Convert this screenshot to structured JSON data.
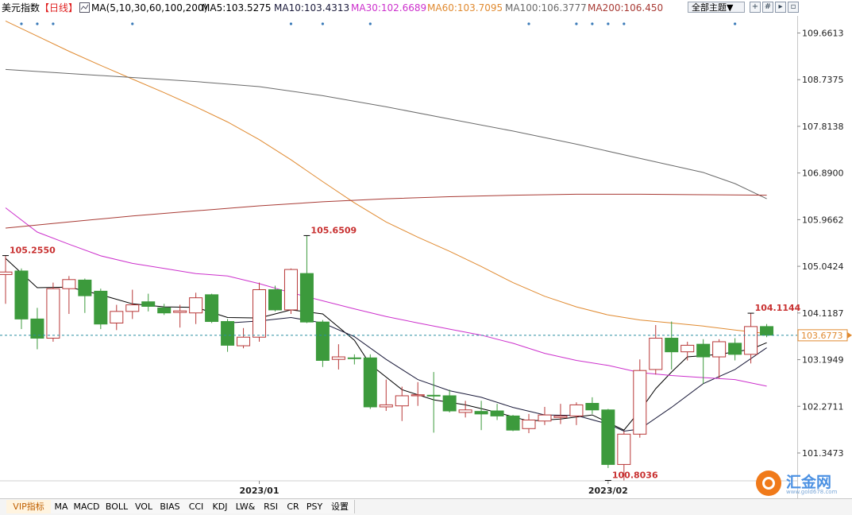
{
  "header": {
    "instrument": "美元指数",
    "period": "【日线】",
    "ma_params": "MA(5,10,30,60,100,200)",
    "ma5": "MA5:103.5275",
    "ma10": "MA10:103.4313",
    "ma30": "MA30:102.6689",
    "ma60": "MA60:103.7095",
    "ma100": "MA100:106.3777",
    "ma200": "MA200:106.450",
    "theme_button": "全部主题▼"
  },
  "colors": {
    "up": "#b83838",
    "down": "#3c9a3c",
    "ma5": "#000000",
    "ma10": "#1a1a3a",
    "ma30": "#cc30cc",
    "ma60": "#e08a30",
    "ma100": "#6a6a6a",
    "ma200": "#a83a34",
    "last_price_line": "#2a8fa0"
  },
  "tabs": [
    "VIP指标",
    "MA",
    "MACD",
    "BOLL",
    "VOL",
    "BIAS",
    "CCI",
    "KDJ",
    "LW&",
    "RSI",
    "CR",
    "PSY",
    "设置"
  ],
  "logo": {
    "name": "汇金网",
    "url": "www.gold678.com"
  },
  "chart_data": {
    "type": "candlestick",
    "title": "美元指数",
    "y_ticks": [
      109.6613,
      108.7375,
      107.8138,
      106.89,
      105.9662,
      105.0424,
      104.1187,
      103.1949,
      102.2711,
      101.3473
    ],
    "ylim": [
      100.45,
      110.0
    ],
    "x_labels": [
      {
        "label": "2023/01",
        "index": 16
      },
      {
        "label": "2023/02",
        "index": 38
      }
    ],
    "last_price": 103.6773,
    "annotations": [
      {
        "text": "105.2550",
        "index": 0,
        "value": 105.255
      },
      {
        "text": "105.6509",
        "index": 19,
        "value": 105.6509
      },
      {
        "text": "100.8036",
        "index": 38,
        "value": 100.8036
      },
      {
        "text": "104.1144",
        "index": 47,
        "value": 104.1144
      }
    ],
    "candles": [
      {
        "o": 104.88,
        "h": 105.255,
        "l": 104.3,
        "c": 104.93
      },
      {
        "o": 104.95,
        "h": 105.0,
        "l": 103.8,
        "c": 104.0
      },
      {
        "o": 104.0,
        "h": 104.22,
        "l": 103.4,
        "c": 103.62
      },
      {
        "o": 103.62,
        "h": 104.72,
        "l": 103.55,
        "c": 104.6
      },
      {
        "o": 104.6,
        "h": 104.85,
        "l": 104.1,
        "c": 104.78
      },
      {
        "o": 104.77,
        "h": 104.8,
        "l": 104.12,
        "c": 104.46
      },
      {
        "o": 104.55,
        "h": 104.6,
        "l": 103.8,
        "c": 103.9
      },
      {
        "o": 103.92,
        "h": 104.28,
        "l": 103.78,
        "c": 104.15
      },
      {
        "o": 104.15,
        "h": 104.58,
        "l": 104.0,
        "c": 104.28
      },
      {
        "o": 104.34,
        "h": 104.5,
        "l": 104.15,
        "c": 104.25
      },
      {
        "o": 104.22,
        "h": 104.3,
        "l": 104.08,
        "c": 104.12
      },
      {
        "o": 104.13,
        "h": 104.28,
        "l": 103.83,
        "c": 104.16
      },
      {
        "o": 104.12,
        "h": 104.52,
        "l": 103.9,
        "c": 104.42
      },
      {
        "o": 104.48,
        "h": 104.5,
        "l": 103.92,
        "c": 103.95
      },
      {
        "o": 103.95,
        "h": 104.0,
        "l": 103.35,
        "c": 103.48
      },
      {
        "o": 103.47,
        "h": 103.82,
        "l": 103.42,
        "c": 103.64
      },
      {
        "o": 103.64,
        "h": 104.72,
        "l": 103.55,
        "c": 104.58
      },
      {
        "o": 104.58,
        "h": 104.66,
        "l": 104.15,
        "c": 104.18
      },
      {
        "o": 104.18,
        "h": 105.0,
        "l": 104.1,
        "c": 104.98
      },
      {
        "o": 104.9,
        "h": 105.6509,
        "l": 103.92,
        "c": 103.94
      },
      {
        "o": 103.94,
        "h": 103.98,
        "l": 103.05,
        "c": 103.18
      },
      {
        "o": 103.2,
        "h": 103.5,
        "l": 103.0,
        "c": 103.25
      },
      {
        "o": 103.23,
        "h": 103.3,
        "l": 103.1,
        "c": 103.22
      },
      {
        "o": 103.23,
        "h": 103.3,
        "l": 102.22,
        "c": 102.26
      },
      {
        "o": 102.26,
        "h": 102.8,
        "l": 102.18,
        "c": 102.3
      },
      {
        "o": 102.28,
        "h": 102.66,
        "l": 101.98,
        "c": 102.48
      },
      {
        "o": 102.48,
        "h": 102.75,
        "l": 102.28,
        "c": 102.5
      },
      {
        "o": 102.49,
        "h": 102.95,
        "l": 101.75,
        "c": 102.48
      },
      {
        "o": 102.48,
        "h": 102.6,
        "l": 102.15,
        "c": 102.18
      },
      {
        "o": 102.15,
        "h": 102.38,
        "l": 102.05,
        "c": 102.2
      },
      {
        "o": 102.17,
        "h": 102.38,
        "l": 101.8,
        "c": 102.12
      },
      {
        "o": 102.18,
        "h": 102.32,
        "l": 102.0,
        "c": 102.08
      },
      {
        "o": 102.08,
        "h": 102.1,
        "l": 101.78,
        "c": 101.8
      },
      {
        "o": 101.83,
        "h": 102.12,
        "l": 101.74,
        "c": 102.0
      },
      {
        "o": 101.98,
        "h": 102.26,
        "l": 101.9,
        "c": 102.1
      },
      {
        "o": 102.05,
        "h": 102.32,
        "l": 101.92,
        "c": 102.08
      },
      {
        "o": 102.08,
        "h": 102.35,
        "l": 101.9,
        "c": 102.3
      },
      {
        "o": 102.33,
        "h": 102.45,
        "l": 102.12,
        "c": 102.2
      },
      {
        "o": 102.2,
        "h": 102.22,
        "l": 101.05,
        "c": 101.12
      },
      {
        "o": 101.12,
        "h": 101.78,
        "l": 100.8036,
        "c": 101.72
      },
      {
        "o": 101.72,
        "h": 103.2,
        "l": 101.65,
        "c": 102.98
      },
      {
        "o": 103.0,
        "h": 103.88,
        "l": 102.9,
        "c": 103.62
      },
      {
        "o": 103.62,
        "h": 103.95,
        "l": 103.0,
        "c": 103.35
      },
      {
        "o": 103.35,
        "h": 103.55,
        "l": 103.18,
        "c": 103.48
      },
      {
        "o": 103.5,
        "h": 103.6,
        "l": 102.72,
        "c": 103.25
      },
      {
        "o": 103.25,
        "h": 103.6,
        "l": 102.82,
        "c": 103.55
      },
      {
        "o": 103.52,
        "h": 103.62,
        "l": 103.18,
        "c": 103.3
      },
      {
        "o": 103.3,
        "h": 104.1144,
        "l": 103.12,
        "c": 103.85
      },
      {
        "o": 103.85,
        "h": 103.9,
        "l": 103.64,
        "c": 103.68
      }
    ],
    "ma_series": [
      {
        "name": "MA5",
        "points": [
          [
            0,
            105.2
          ],
          [
            2,
            104.62
          ],
          [
            4,
            104.63
          ],
          [
            6,
            104.48
          ],
          [
            8,
            104.3
          ],
          [
            10,
            104.24
          ],
          [
            12,
            104.23
          ],
          [
            14,
            104.03
          ],
          [
            16,
            104.02
          ],
          [
            18,
            104.18
          ],
          [
            20,
            104.1
          ],
          [
            22,
            103.58
          ],
          [
            23,
            103.1
          ],
          [
            25,
            102.6
          ],
          [
            27,
            102.4
          ],
          [
            29,
            102.3
          ],
          [
            31,
            102.15
          ],
          [
            33,
            101.98
          ],
          [
            35,
            102.02
          ],
          [
            37,
            102.1
          ],
          [
            39,
            101.8
          ],
          [
            40,
            102.18
          ],
          [
            41,
            102.62
          ],
          [
            42,
            102.95
          ],
          [
            43,
            103.25
          ],
          [
            45,
            103.3
          ],
          [
            47,
            103.4
          ],
          [
            48,
            103.53
          ]
        ]
      },
      {
        "name": "MA10",
        "points": [
          [
            14,
            103.92
          ],
          [
            16,
            103.96
          ],
          [
            18,
            104.03
          ],
          [
            20,
            103.92
          ],
          [
            22,
            103.65
          ],
          [
            24,
            103.2
          ],
          [
            26,
            102.8
          ],
          [
            28,
            102.58
          ],
          [
            30,
            102.45
          ],
          [
            32,
            102.25
          ],
          [
            34,
            102.1
          ],
          [
            36,
            102.09
          ],
          [
            38,
            101.92
          ],
          [
            39,
            101.78
          ],
          [
            40,
            101.82
          ],
          [
            42,
            102.25
          ],
          [
            44,
            102.72
          ],
          [
            46,
            103.0
          ],
          [
            48,
            103.43
          ]
        ]
      },
      {
        "name": "MA30",
        "points": [
          [
            0,
            106.2
          ],
          [
            2,
            105.72
          ],
          [
            4,
            105.48
          ],
          [
            6,
            105.25
          ],
          [
            8,
            105.1
          ],
          [
            10,
            105.0
          ],
          [
            12,
            104.9
          ],
          [
            14,
            104.85
          ],
          [
            16,
            104.7
          ],
          [
            18,
            104.52
          ],
          [
            20,
            104.36
          ],
          [
            22,
            104.2
          ],
          [
            24,
            104.05
          ],
          [
            26,
            103.92
          ],
          [
            28,
            103.8
          ],
          [
            30,
            103.68
          ],
          [
            32,
            103.52
          ],
          [
            34,
            103.32
          ],
          [
            36,
            103.18
          ],
          [
            38,
            103.08
          ],
          [
            40,
            102.94
          ],
          [
            42,
            102.88
          ],
          [
            44,
            102.84
          ],
          [
            46,
            102.8
          ],
          [
            48,
            102.67
          ]
        ]
      },
      {
        "name": "MA60",
        "points": [
          [
            0,
            109.9
          ],
          [
            2,
            109.6
          ],
          [
            4,
            109.3
          ],
          [
            6,
            109.02
          ],
          [
            8,
            108.75
          ],
          [
            10,
            108.48
          ],
          [
            12,
            108.2
          ],
          [
            14,
            107.9
          ],
          [
            16,
            107.55
          ],
          [
            18,
            107.15
          ],
          [
            20,
            106.72
          ],
          [
            22,
            106.3
          ],
          [
            24,
            105.92
          ],
          [
            26,
            105.62
          ],
          [
            28,
            105.34
          ],
          [
            30,
            105.04
          ],
          [
            32,
            104.72
          ],
          [
            34,
            104.45
          ],
          [
            36,
            104.24
          ],
          [
            38,
            104.08
          ],
          [
            40,
            103.98
          ],
          [
            42,
            103.92
          ],
          [
            44,
            103.86
          ],
          [
            46,
            103.78
          ],
          [
            48,
            103.71
          ]
        ]
      },
      {
        "name": "MA100",
        "points": [
          [
            0,
            108.94
          ],
          [
            4,
            108.86
          ],
          [
            8,
            108.78
          ],
          [
            12,
            108.7
          ],
          [
            16,
            108.6
          ],
          [
            20,
            108.42
          ],
          [
            24,
            108.2
          ],
          [
            28,
            107.96
          ],
          [
            32,
            107.72
          ],
          [
            36,
            107.46
          ],
          [
            40,
            107.18
          ],
          [
            44,
            106.9
          ],
          [
            46,
            106.68
          ],
          [
            48,
            106.38
          ]
        ]
      },
      {
        "name": "MA200",
        "points": [
          [
            0,
            105.8
          ],
          [
            4,
            105.92
          ],
          [
            8,
            106.04
          ],
          [
            12,
            106.14
          ],
          [
            16,
            106.24
          ],
          [
            20,
            106.32
          ],
          [
            24,
            106.38
          ],
          [
            28,
            106.42
          ],
          [
            32,
            106.45
          ],
          [
            36,
            106.47
          ],
          [
            40,
            106.47
          ],
          [
            44,
            106.46
          ],
          [
            48,
            106.45
          ]
        ]
      }
    ],
    "markers": [
      1,
      2,
      3,
      8,
      18,
      20,
      23,
      33,
      36,
      37,
      38,
      39,
      46
    ]
  }
}
